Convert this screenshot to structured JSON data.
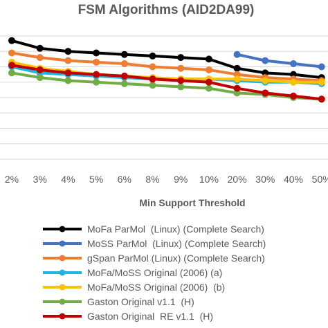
{
  "chart_data": {
    "type": "line",
    "title": "FSM Algorithms (AID2DA99)",
    "xlabel": "Min Support Threshold",
    "ylabel": "",
    "categories": [
      "2%",
      "3%",
      "4%",
      "5%",
      "6%",
      "8%",
      "9%",
      "10%",
      "20%",
      "30%",
      "40%",
      "50%"
    ],
    "ylim": [
      0,
      8
    ],
    "grid": "horizontal",
    "legend_position": "bottom",
    "series": [
      {
        "name": "MoFa ParMol  (Linux) (Complete Search)",
        "color": "#000000",
        "values": [
          7.7,
          7.2,
          7.0,
          6.9,
          6.8,
          6.7,
          6.6,
          6.5,
          5.9,
          5.6,
          5.5,
          5.3
        ]
      },
      {
        "name": "MoSS ParMol  (Linux) (Complete Search)",
        "color": "#4472C4",
        "values": [
          null,
          null,
          null,
          null,
          null,
          null,
          null,
          null,
          6.8,
          6.4,
          6.2,
          6.0
        ]
      },
      {
        "name": "gSpan ParMol (Linux) (Complete Search)",
        "color": "#ED7D31",
        "values": [
          6.9,
          6.6,
          6.4,
          6.3,
          6.2,
          6.0,
          5.9,
          5.8,
          5.5,
          5.3,
          5.2,
          5.1
        ]
      },
      {
        "name": "MoFa/MoSS Original (2006) (a)",
        "color": "#1CB4E3",
        "values": [
          6.0,
          5.6,
          5.5,
          5.4,
          5.3,
          5.2,
          5.2,
          5.2,
          5.1,
          5.0,
          5.0,
          4.9
        ]
      },
      {
        "name": "MoFa/MoSS Original (2006)  (b)",
        "color": "#FFC000",
        "values": [
          6.3,
          5.9,
          5.7,
          5.5,
          5.4,
          5.3,
          5.2,
          5.2,
          5.2,
          5.1,
          5.0,
          5.0
        ]
      },
      {
        "name": "Gaston Original v1.1  (H)",
        "color": "#70AD47",
        "values": [
          5.6,
          5.3,
          5.1,
          5.0,
          4.9,
          4.8,
          4.7,
          4.6,
          4.3,
          4.2,
          4.0,
          3.9
        ]
      },
      {
        "name": "Gaston Original  RE v1.1  (H)",
        "color": "#C00000",
        "values": [
          6.1,
          5.8,
          5.6,
          5.5,
          5.4,
          5.2,
          5.1,
          5.0,
          4.6,
          4.3,
          4.1,
          3.9
        ]
      }
    ]
  }
}
